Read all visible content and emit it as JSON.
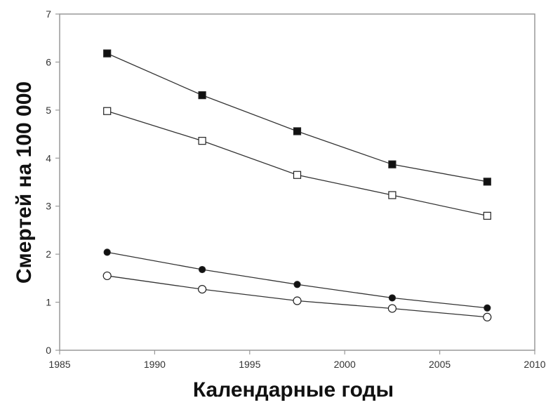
{
  "chart_data": {
    "type": "line",
    "xlabel": "Календарные годы",
    "ylabel": "Смертей на 100 000",
    "xlim": [
      1985,
      2010
    ],
    "ylim": [
      0,
      7
    ],
    "xticks": [
      1985,
      1990,
      1995,
      2000,
      2005,
      2010
    ],
    "yticks": [
      0,
      1,
      2,
      3,
      4,
      5,
      6,
      7
    ],
    "grid": false,
    "legend": "none",
    "series": [
      {
        "marker": "filled-square",
        "x": [
          1987.5,
          1992.5,
          1997.5,
          2002.5,
          2007.5
        ],
        "y": [
          6.18,
          5.31,
          4.56,
          3.87,
          3.51
        ]
      },
      {
        "marker": "open-square",
        "x": [
          1987.5,
          1992.5,
          1997.5,
          2002.5,
          2007.5
        ],
        "y": [
          4.98,
          4.36,
          3.65,
          3.23,
          2.8
        ]
      },
      {
        "marker": "filled-circle",
        "x": [
          1987.5,
          1992.5,
          1997.5,
          2002.5,
          2007.5
        ],
        "y": [
          2.04,
          1.68,
          1.37,
          1.09,
          0.88
        ]
      },
      {
        "marker": "open-circle",
        "x": [
          1987.5,
          1992.5,
          1997.5,
          2002.5,
          2007.5
        ],
        "y": [
          1.55,
          1.27,
          1.03,
          0.87,
          0.69
        ]
      }
    ]
  }
}
